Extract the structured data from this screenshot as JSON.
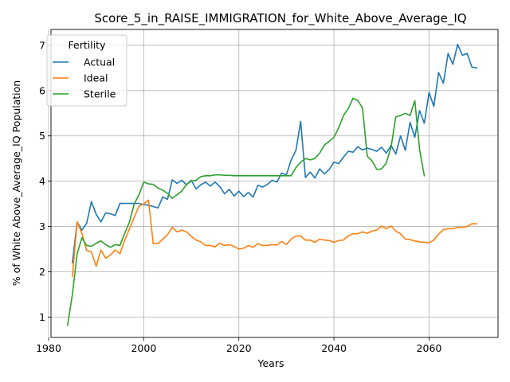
{
  "chart_data": {
    "type": "line",
    "title": "Score_5_in_RAISE_IMMIGRATION_for_White_Above_Average_IQ",
    "xlabel": "Years",
    "ylabel": "% of White Above_Average_IQ Population",
    "xlim": [
      1980.5,
      2074.5
    ],
    "ylim": [
      0.55,
      7.35
    ],
    "xticks": [
      1980,
      2000,
      2020,
      2040,
      2060
    ],
    "yticks": [
      1,
      2,
      3,
      4,
      5,
      6,
      7
    ],
    "grid": true,
    "legend": {
      "title": "Fertility",
      "placement": "top-left"
    },
    "series": [
      {
        "name": "Actual",
        "color": "#1f77b4",
        "x": [
          1985,
          1986,
          1987,
          1988,
          1989,
          1990,
          1991,
          1992,
          1993,
          1994,
          1995,
          1996,
          1997,
          1998,
          1999,
          2000,
          2001,
          2002,
          2003,
          2004,
          2005,
          2006,
          2007,
          2008,
          2009,
          2010,
          2011,
          2012,
          2013,
          2014,
          2015,
          2016,
          2017,
          2018,
          2019,
          2020,
          2021,
          2022,
          2023,
          2024,
          2025,
          2026,
          2027,
          2028,
          2029,
          2030,
          2031,
          2032,
          2033,
          2034,
          2035,
          2036,
          2037,
          2038,
          2039,
          2040,
          2041,
          2042,
          2043,
          2044,
          2045,
          2046,
          2047,
          2048,
          2049,
          2050,
          2051,
          2052,
          2053,
          2054,
          2055,
          2056,
          2057,
          2058,
          2059,
          2060,
          2061,
          2062,
          2063,
          2064,
          2065,
          2066,
          2067,
          2068,
          2069,
          2070
        ],
        "y": [
          2.2,
          3.1,
          2.92,
          3.07,
          3.55,
          3.27,
          3.1,
          3.3,
          3.28,
          3.24,
          3.51,
          3.51,
          3.51,
          3.51,
          3.51,
          3.48,
          3.47,
          3.44,
          3.41,
          3.65,
          3.6,
          4.03,
          3.95,
          4.02,
          3.92,
          4.02,
          3.83,
          3.92,
          3.98,
          3.89,
          3.98,
          3.88,
          3.72,
          3.82,
          3.67,
          3.78,
          3.66,
          3.75,
          3.65,
          3.91,
          3.87,
          3.93,
          4.02,
          3.98,
          4.18,
          4.14,
          4.47,
          4.68,
          5.32,
          4.08,
          4.2,
          4.07,
          4.27,
          4.16,
          4.26,
          4.42,
          4.39,
          4.53,
          4.66,
          4.64,
          4.76,
          4.69,
          4.73,
          4.7,
          4.66,
          4.75,
          4.62,
          4.79,
          4.6,
          5.0,
          4.68,
          5.3,
          4.97,
          5.56,
          5.28,
          5.96,
          5.65,
          6.4,
          6.16,
          6.82,
          6.58,
          7.02,
          6.78,
          6.82,
          6.52,
          6.5
        ]
      },
      {
        "name": "Ideal",
        "color": "#ff7f0e",
        "x": [
          1985,
          1986,
          1987,
          1988,
          1989,
          1990,
          1991,
          1992,
          1993,
          1994,
          1995,
          1996,
          1997,
          1998,
          1999,
          2000,
          2001,
          2002,
          2003,
          2004,
          2005,
          2006,
          2007,
          2008,
          2009,
          2010,
          2011,
          2012,
          2013,
          2014,
          2015,
          2016,
          2017,
          2018,
          2019,
          2020,
          2021,
          2022,
          2023,
          2024,
          2025,
          2026,
          2027,
          2028,
          2029,
          2030,
          2031,
          2032,
          2033,
          2034,
          2035,
          2036,
          2037,
          2038,
          2039,
          2040,
          2041,
          2042,
          2043,
          2044,
          2045,
          2046,
          2047,
          2048,
          2049,
          2050,
          2051,
          2052,
          2053,
          2054,
          2055,
          2056,
          2057,
          2058,
          2059,
          2060,
          2061,
          2062,
          2063,
          2064,
          2065,
          2066,
          2067,
          2068,
          2069,
          2070
        ],
        "y": [
          1.9,
          3.1,
          2.85,
          2.47,
          2.44,
          2.12,
          2.48,
          2.3,
          2.37,
          2.48,
          2.4,
          2.7,
          2.95,
          3.2,
          3.45,
          3.5,
          3.58,
          2.62,
          2.62,
          2.72,
          2.82,
          2.98,
          2.88,
          2.92,
          2.88,
          2.78,
          2.7,
          2.66,
          2.58,
          2.58,
          2.55,
          2.63,
          2.58,
          2.6,
          2.56,
          2.5,
          2.52,
          2.58,
          2.54,
          2.62,
          2.58,
          2.58,
          2.6,
          2.59,
          2.67,
          2.6,
          2.72,
          2.79,
          2.79,
          2.7,
          2.7,
          2.65,
          2.72,
          2.7,
          2.69,
          2.65,
          2.69,
          2.7,
          2.79,
          2.84,
          2.84,
          2.88,
          2.85,
          2.9,
          2.92,
          3.01,
          2.95,
          3.01,
          2.9,
          2.84,
          2.72,
          2.71,
          2.68,
          2.66,
          2.65,
          2.64,
          2.7,
          2.83,
          2.93,
          2.95,
          2.95,
          2.98,
          2.98,
          3.0,
          3.06,
          3.06
        ]
      },
      {
        "name": "Sterile",
        "color": "#2ca02c",
        "x": [
          1984,
          1985,
          1986,
          1987,
          1988,
          1989,
          1990,
          1991,
          1992,
          1993,
          1994,
          1995,
          1996,
          1997,
          1998,
          1999,
          2000,
          2001,
          2002,
          2003,
          2004,
          2005,
          2006,
          2007,
          2008,
          2009,
          2010,
          2011,
          2012,
          2013,
          2014,
          2015,
          2016,
          2017,
          2018,
          2019,
          2020,
          2021,
          2022,
          2023,
          2024,
          2025,
          2026,
          2027,
          2028,
          2029,
          2030,
          2031,
          2032,
          2033,
          2034,
          2035,
          2036,
          2037,
          2038,
          2039,
          2040,
          2041,
          2042,
          2043,
          2044,
          2045,
          2046,
          2047,
          2048,
          2049,
          2050,
          2051,
          2052,
          2053,
          2054,
          2055,
          2056,
          2057,
          2058,
          2059
        ],
        "y": [
          0.82,
          1.5,
          2.4,
          2.75,
          2.58,
          2.56,
          2.63,
          2.68,
          2.6,
          2.54,
          2.6,
          2.58,
          2.85,
          3.1,
          3.5,
          3.7,
          3.98,
          3.94,
          3.93,
          3.85,
          3.8,
          3.73,
          3.62,
          3.7,
          3.78,
          3.93,
          4.0,
          4.02,
          4.1,
          4.12,
          4.12,
          4.14,
          4.14,
          4.13,
          4.13,
          4.12,
          4.12,
          4.12,
          4.12,
          4.12,
          4.12,
          4.12,
          4.12,
          4.12,
          4.12,
          4.12,
          4.12,
          4.12,
          4.3,
          4.42,
          4.5,
          4.47,
          4.5,
          4.62,
          4.8,
          4.88,
          4.97,
          5.18,
          5.45,
          5.6,
          5.83,
          5.78,
          5.62,
          4.55,
          4.45,
          4.26,
          4.27,
          4.4,
          4.75,
          5.42,
          5.45,
          5.5,
          5.45,
          5.78,
          4.7,
          4.12
        ]
      }
    ]
  }
}
